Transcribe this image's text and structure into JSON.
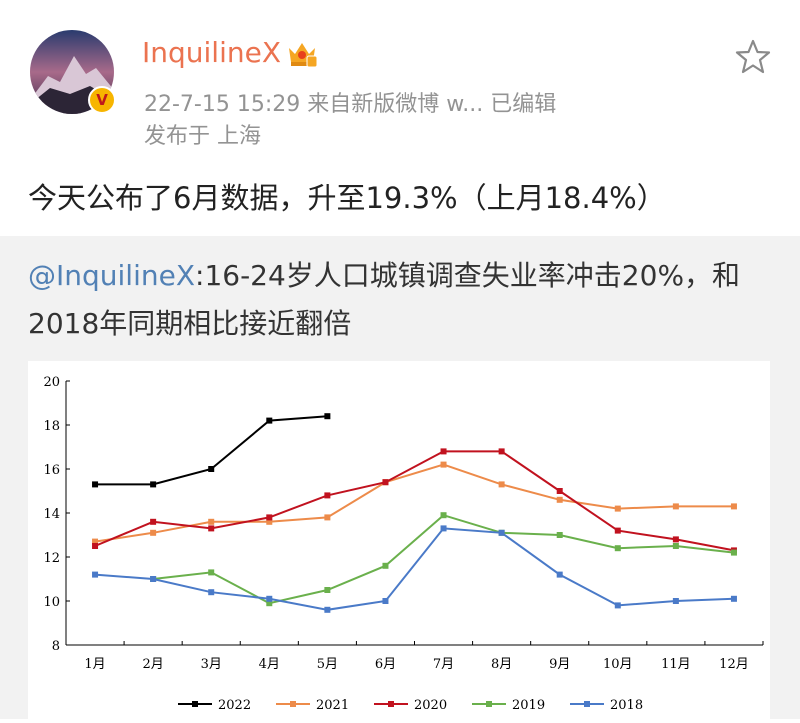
{
  "post": {
    "username": "InquilineX",
    "meta": "22-7-15 15:29  来自新版微博 w...  已编辑",
    "location": "发布于 上海",
    "text": "今天公布了6月数据，升至19.3%（上月18.4%）",
    "verified_badge": "V"
  },
  "repost": {
    "mention": "@InquilineX",
    "text": ":16-24岁人口城镇调查失业率冲击20%，和2018年同期相比接近翻倍"
  },
  "icons": {
    "favorite": "star-outline-icon",
    "membership": "crown-badge-icon"
  },
  "colors": {
    "username": "#eb7350",
    "mention": "#5281b5",
    "s2022": "#000000",
    "s2021": "#ed8b4a",
    "s2020": "#c1121f",
    "s2019": "#6ab04c",
    "s2018": "#4a7ac8"
  },
  "chart_data": {
    "type": "line",
    "categories": [
      "1月",
      "2月",
      "3月",
      "4月",
      "5月",
      "6月",
      "7月",
      "8月",
      "9月",
      "10月",
      "11月",
      "12月"
    ],
    "ylim": [
      8,
      20
    ],
    "yticks": [
      "8",
      "10",
      "12",
      "14",
      "16",
      "18",
      "20"
    ],
    "legend_position": "bottom",
    "grid": false,
    "series": [
      {
        "name": "2022",
        "values": [
          15.3,
          15.3,
          16.0,
          18.2,
          18.4,
          null,
          null,
          null,
          null,
          null,
          null,
          null
        ]
      },
      {
        "name": "2021",
        "values": [
          12.7,
          13.1,
          13.6,
          13.6,
          13.8,
          15.4,
          16.2,
          15.3,
          14.6,
          14.2,
          14.3,
          14.3
        ]
      },
      {
        "name": "2020",
        "values": [
          12.5,
          13.6,
          13.3,
          13.8,
          14.8,
          15.4,
          16.8,
          16.8,
          15.0,
          13.2,
          12.8,
          12.3
        ]
      },
      {
        "name": "2019",
        "values": [
          null,
          11.0,
          11.3,
          9.9,
          10.5,
          11.6,
          13.9,
          13.1,
          13.0,
          12.4,
          12.5,
          12.2
        ]
      },
      {
        "name": "2018",
        "values": [
          11.2,
          11.0,
          10.4,
          10.1,
          9.6,
          10.0,
          13.3,
          13.1,
          11.2,
          9.8,
          10.0,
          10.1
        ]
      }
    ]
  }
}
